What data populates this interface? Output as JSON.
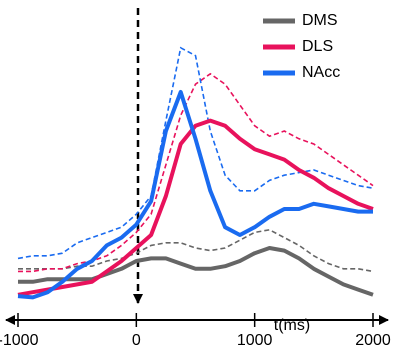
{
  "chart_data": {
    "type": "line",
    "x_label": "t(ms)",
    "x": [
      -1000,
      -875,
      -750,
      -625,
      -500,
      -375,
      -250,
      -125,
      0,
      125,
      250,
      375,
      500,
      625,
      750,
      875,
      1000,
      1125,
      1250,
      1375,
      1500,
      1625,
      1750,
      1875,
      2000
    ],
    "xlim": [
      -1000,
      2000
    ],
    "xticks": [
      -1000,
      0,
      1000,
      2000
    ],
    "ylim": [
      0,
      100
    ],
    "series": [
      {
        "name": "DMS",
        "color": "#666666",
        "values": [
          7,
          7,
          8,
          8,
          8,
          8,
          10,
          12,
          15,
          16,
          16,
          14,
          12,
          12,
          13,
          15,
          18,
          20,
          19,
          16,
          12,
          9,
          6,
          4,
          2
        ],
        "upper": [
          12,
          12,
          12,
          12,
          13,
          13,
          15,
          16,
          18,
          21,
          22,
          22,
          20,
          19,
          20,
          23,
          26,
          27,
          24,
          21,
          17,
          14,
          12,
          12,
          11
        ]
      },
      {
        "name": "DLS",
        "color": "#e8125c",
        "values": [
          2,
          3,
          4,
          5,
          6,
          7,
          11,
          15,
          20,
          25,
          40,
          60,
          67,
          69,
          67,
          62,
          58,
          56,
          54,
          50,
          47,
          43,
          40,
          37,
          35
        ],
        "upper": [
          11,
          11,
          12,
          12,
          14,
          15,
          17,
          21,
          26,
          33,
          52,
          71,
          83,
          87,
          83,
          75,
          67,
          63,
          65,
          62,
          60,
          56,
          52,
          48,
          44
        ]
      },
      {
        "name": "NAcc",
        "color": "#1a6bf0",
        "values": [
          1.5,
          1,
          3,
          7,
          12,
          15,
          21,
          24,
          29,
          38,
          65,
          80,
          62,
          42,
          28,
          25,
          28,
          32,
          35,
          35,
          37,
          36,
          35,
          34,
          34
        ],
        "upper": [
          16,
          17,
          17,
          18,
          22,
          24,
          26,
          28,
          33,
          40,
          69,
          97,
          94,
          65,
          48,
          42,
          42,
          46,
          48,
          49,
          50,
          48,
          46,
          44,
          43
        ]
      }
    ]
  }
}
